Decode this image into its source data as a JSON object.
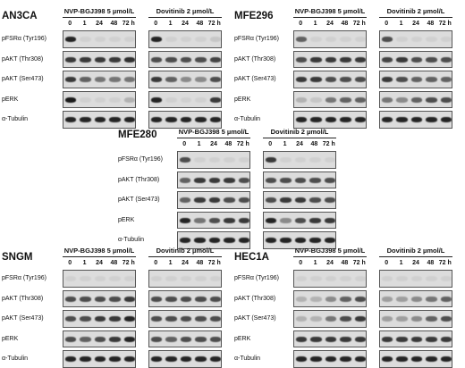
{
  "treatments": {
    "nvp": "NVP-BGJ398 5 µmol/L",
    "dov": "Dovitinib 2 µmol/L"
  },
  "timepoints": [
    "0",
    "1",
    "24",
    "48",
    "72 h"
  ],
  "antibodies": [
    "pFSRα (Tyr196)",
    "pAKT (Thr308)",
    "pAKT (Ser473)",
    "pERK",
    "α-Tubulin"
  ],
  "panels": [
    {
      "cell_line": "AN3CA"
    },
    {
      "cell_line": "MFE296"
    },
    {
      "cell_line": "MFE280"
    },
    {
      "cell_line": "SNGM"
    },
    {
      "cell_line": "HEC1A"
    }
  ],
  "colors": {
    "background": "#ffffff",
    "blot": "#dcdcdc",
    "band": "#111111"
  }
}
